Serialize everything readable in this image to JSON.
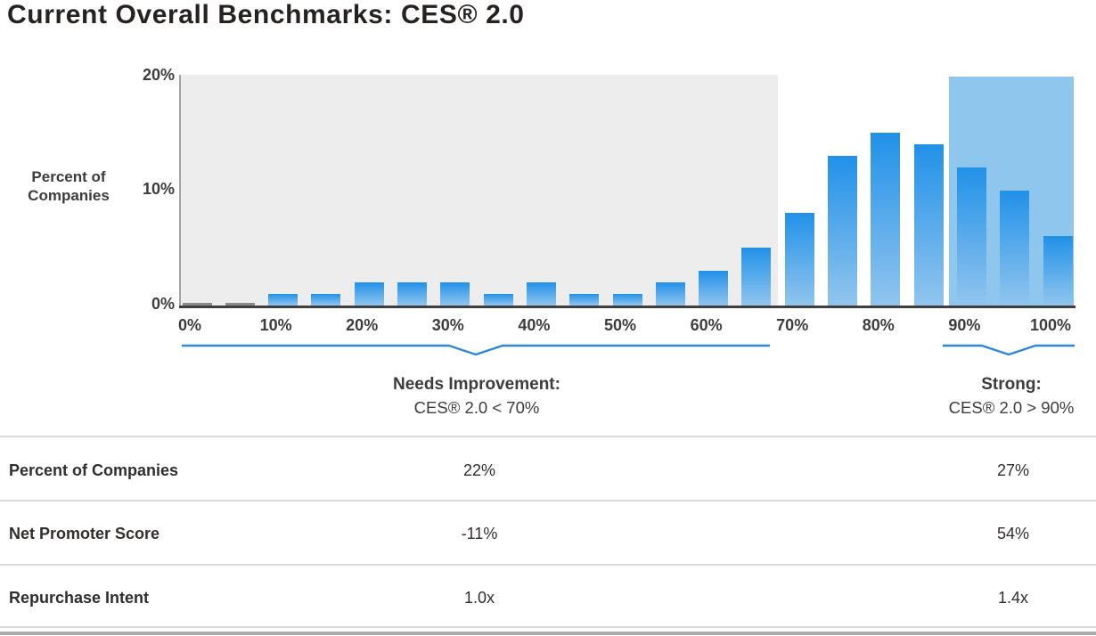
{
  "title": "Current Overall Benchmarks: CES® 2.0",
  "colors": {
    "bar_gradient_top": "#2191E8",
    "bar_gradient_bottom": "#91C5EE",
    "strong_region_fill": "#8EC6EE",
    "needs_improvement_region_fill": "#EDEDED",
    "bracket_blue": "#2E86DA",
    "x_axis": "#3E3E3E",
    "y_axis": "#A2A2A2",
    "near_zero_bar_gray": "#8A8A8A"
  },
  "chart_data": {
    "type": "bar",
    "title": "Current Overall Benchmarks: CES® 2.0",
    "ylabel": "Percent of Companies",
    "ylabel_lines": [
      "Percent of",
      "Companies"
    ],
    "xlabel": "",
    "ylim": [
      0,
      20
    ],
    "ytick_labels": [
      "0%",
      "10%",
      "20%"
    ],
    "xtick_labels": [
      "0%",
      "10%",
      "20%",
      "30%",
      "40%",
      "50%",
      "60%",
      "70%",
      "80%",
      "90%",
      "100%"
    ],
    "x_numeric": [
      0,
      5,
      10,
      15,
      20,
      25,
      30,
      35,
      40,
      45,
      50,
      55,
      60,
      65,
      70,
      75,
      80,
      85,
      90,
      95,
      100
    ],
    "values": [
      0.2,
      0.2,
      1,
      1,
      2,
      2,
      2,
      1,
      2,
      1,
      1,
      2,
      3,
      5,
      8,
      13,
      15,
      14,
      12,
      10,
      6
    ],
    "bar_color_top": "#2191E8",
    "bar_color_bottom": "#91C5EE",
    "bar_color_overrides": {
      "0": "#8A8A8A",
      "1": "#8A8A8A"
    },
    "grid": "off",
    "legend": "none",
    "regions": [
      {
        "id": "needs-improvement",
        "label": "Needs Improvement:",
        "sublabel": "CES® 2.0 < 70%",
        "x_range_pct": [
          0,
          68
        ],
        "color": "#EDEDED"
      },
      {
        "id": "strong",
        "label": "Strong:",
        "sublabel": "CES® 2.0 > 90%",
        "x_range_pct": [
          88,
          100
        ],
        "color": "#8EC6EE"
      }
    ]
  },
  "benchmarks_table": {
    "columns": [
      "",
      "Needs Improvement",
      "Strong"
    ],
    "rows": [
      {
        "label": "Percent of Companies",
        "needs_improvement": "22%",
        "strong": "27%"
      },
      {
        "label": "Net Promoter Score",
        "needs_improvement": "-11%",
        "strong": "54%"
      },
      {
        "label": "Repurchase Intent",
        "needs_improvement": "1.0x",
        "strong": "1.4x"
      }
    ]
  }
}
